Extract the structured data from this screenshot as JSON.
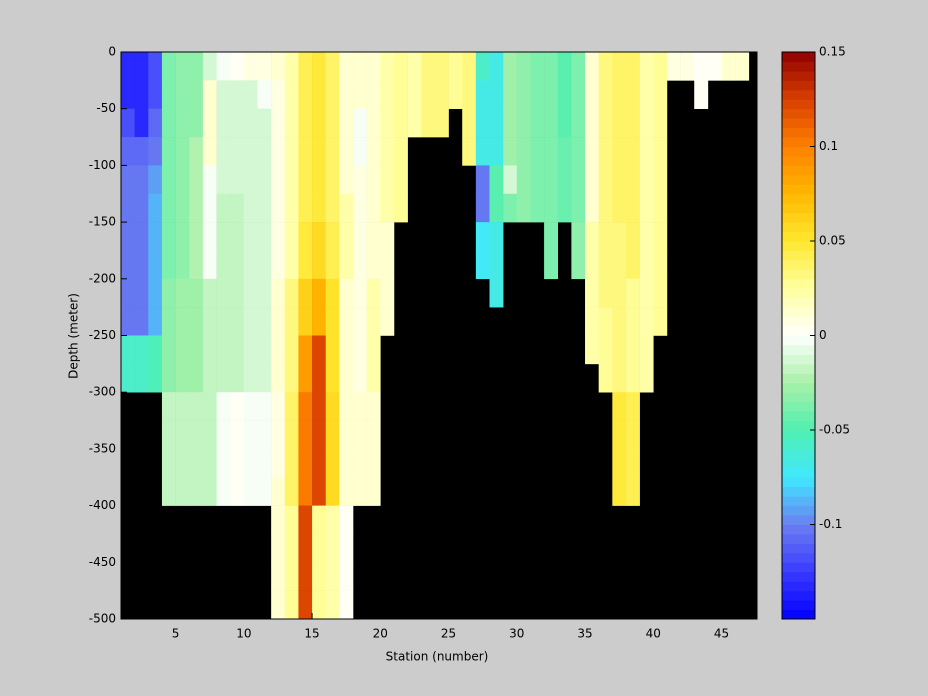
{
  "chart_data": {
    "type": "heatmap",
    "xlabel": "Station (number)",
    "ylabel": "Depth (meter)",
    "xlim": [
      1,
      47.6
    ],
    "ylim": [
      -500,
      0
    ],
    "xticks": [
      5,
      10,
      15,
      20,
      25,
      30,
      35,
      40,
      45
    ],
    "yticks": [
      0,
      -50,
      -100,
      -150,
      -200,
      -250,
      -300,
      -350,
      -400,
      -450,
      -500
    ],
    "clim": [
      -0.15,
      0.15
    ],
    "cticks": [
      -0.1,
      -0.05,
      0,
      0.05,
      0.1,
      0.15
    ],
    "colormap": [
      "#0000ff",
      "#3a3aff",
      "#6a7ff0",
      "#40e8ff",
      "#50f0b0",
      "#a8f0a8",
      "#ffffff",
      "#ffffa0",
      "#ffe830",
      "#ffb800",
      "#ff8000",
      "#d84000",
      "#900000"
    ],
    "missing_color": "#000000",
    "x_edges": [
      1,
      2,
      3,
      4,
      5,
      6,
      7,
      8,
      9,
      10,
      11,
      12,
      13,
      14,
      15,
      16,
      17,
      18,
      19,
      20,
      21,
      22,
      23,
      24,
      25,
      26,
      27,
      28,
      29,
      30,
      31,
      32,
      33,
      34,
      35,
      36,
      37,
      38,
      39,
      40,
      41,
      42,
      43,
      44,
      45,
      46,
      47
    ],
    "y_edges": [
      0,
      -25,
      -50,
      -75,
      -100,
      -125,
      -150,
      -175,
      -200,
      -225,
      -250,
      -275,
      -300,
      -325,
      -350,
      -375,
      -400,
      -425,
      -450,
      -475,
      -500
    ],
    "values": [
      [
        -0.13,
        -0.13,
        -0.12,
        -0.11,
        -0.1,
        -0.1,
        -0.1,
        -0.1,
        -0.1,
        -0.1,
        -0.06,
        -0.06,
        null,
        null,
        null,
        null,
        null,
        null,
        null,
        null
      ],
      [
        -0.13,
        -0.13,
        -0.13,
        -0.11,
        -0.1,
        -0.1,
        -0.1,
        -0.1,
        -0.1,
        -0.1,
        -0.06,
        -0.06,
        null,
        null,
        null,
        null,
        null,
        null,
        null,
        null
      ],
      [
        -0.12,
        -0.12,
        -0.11,
        -0.1,
        -0.095,
        -0.09,
        -0.09,
        -0.09,
        -0.09,
        -0.09,
        -0.055,
        -0.055,
        null,
        null,
        null,
        null,
        null,
        null,
        null,
        null
      ],
      [
        -0.04,
        -0.04,
        -0.04,
        -0.04,
        -0.04,
        -0.04,
        -0.04,
        -0.04,
        -0.035,
        -0.035,
        -0.035,
        -0.035,
        -0.02,
        -0.02,
        -0.02,
        -0.02,
        null,
        null,
        null,
        null
      ],
      [
        -0.035,
        -0.035,
        -0.035,
        -0.035,
        -0.035,
        -0.035,
        -0.035,
        -0.035,
        -0.03,
        -0.03,
        -0.03,
        -0.03,
        -0.018,
        -0.018,
        -0.018,
        -0.018,
        null,
        null,
        null,
        null
      ],
      [
        -0.035,
        -0.035,
        -0.035,
        -0.025,
        -0.025,
        -0.025,
        -0.025,
        -0.025,
        -0.03,
        -0.03,
        -0.03,
        -0.03,
        -0.018,
        -0.018,
        -0.018,
        -0.018,
        null,
        null,
        null,
        null
      ],
      [
        -0.01,
        0.01,
        0.01,
        0.01,
        -0.005,
        -0.005,
        -0.005,
        -0.005,
        -0.02,
        -0.02,
        -0.02,
        -0.02,
        -0.018,
        -0.018,
        -0.018,
        -0.018,
        null,
        null,
        null,
        null
      ],
      [
        -0.005,
        -0.012,
        -0.012,
        -0.012,
        -0.012,
        -0.02,
        -0.02,
        -0.02,
        -0.02,
        -0.02,
        -0.02,
        -0.02,
        -0.005,
        -0.005,
        -0.005,
        -0.005,
        null,
        null,
        null,
        null
      ],
      [
        0,
        -0.012,
        -0.012,
        -0.01,
        -0.01,
        -0.02,
        -0.02,
        -0.02,
        -0.02,
        -0.02,
        -0.02,
        -0.02,
        0,
        0,
        0,
        0,
        null,
        null,
        null,
        null
      ],
      [
        0.005,
        -0.01,
        -0.01,
        -0.01,
        -0.015,
        -0.015,
        -0.015,
        -0.015,
        -0.015,
        -0.015,
        -0.015,
        -0.015,
        -0.005,
        -0.005,
        -0.005,
        -0.005,
        null,
        null,
        null,
        null
      ],
      [
        0.005,
        -0.005,
        -0.01,
        -0.01,
        -0.01,
        -0.01,
        -0.01,
        -0.01,
        -0.01,
        -0.01,
        -0.01,
        -0.01,
        -0.005,
        -0.005,
        -0.005,
        -0.005,
        null,
        null,
        null,
        null
      ],
      [
        0.01,
        0.005,
        0.005,
        0.005,
        0.005,
        0.005,
        0.005,
        0.005,
        0.01,
        0.01,
        0.01,
        0.01,
        0.005,
        0.005,
        0.005,
        0.01,
        0.015,
        0.015,
        0.015,
        0.015
      ],
      [
        0.02,
        0.02,
        0.02,
        0.02,
        0.02,
        0.02,
        0.02,
        0.02,
        0.03,
        0.03,
        0.03,
        0.03,
        0.035,
        0.035,
        0.035,
        0.035,
        0.025,
        0.025,
        0.025,
        0.025
      ],
      [
        0.04,
        0.04,
        0.04,
        0.04,
        0.04,
        0.04,
        0.045,
        0.045,
        0.06,
        0.06,
        0.085,
        0.085,
        0.1,
        0.1,
        0.1,
        0.1,
        0.12,
        0.12,
        0.12,
        0.12
      ],
      [
        0.045,
        0.045,
        0.045,
        0.045,
        0.045,
        0.045,
        0.055,
        0.055,
        0.075,
        0.075,
        0.12,
        0.12,
        0.12,
        0.12,
        0.12,
        0.12,
        0.025,
        0.025,
        0.025,
        0.025
      ],
      [
        0.035,
        0.035,
        0.035,
        0.035,
        0.035,
        0.035,
        0.04,
        0.04,
        0.05,
        0.05,
        0.05,
        0.05,
        0.055,
        0.055,
        0.055,
        0.055,
        0.02,
        0.02,
        0.02,
        0.02
      ],
      [
        0.015,
        0.015,
        0.015,
        0.015,
        0.015,
        0.02,
        0.02,
        0.02,
        0.015,
        0.015,
        0.015,
        0.015,
        0.01,
        0.01,
        0.01,
        0.01,
        0.002,
        0.002,
        0.002,
        0.002
      ],
      [
        0.01,
        0.01,
        -0.005,
        -0.005,
        0.005,
        0.005,
        0.005,
        0.005,
        0.005,
        0.005,
        0.005,
        0.005,
        0.01,
        0.01,
        0.01,
        0.01,
        null,
        null,
        null,
        null
      ],
      [
        0.01,
        0.01,
        0.01,
        0.01,
        0.01,
        0.015,
        0.015,
        0.015,
        0.02,
        0.02,
        0.02,
        0.02,
        0.015,
        0.015,
        0.015,
        0.015,
        null,
        null,
        null,
        null
      ],
      [
        0.02,
        0.02,
        0.02,
        0.02,
        0.02,
        0.02,
        0.015,
        0.015,
        0.015,
        0.015,
        null,
        null,
        null,
        null,
        null,
        null,
        null,
        null,
        null,
        null
      ],
      [
        0.025,
        0.025,
        0.025,
        0.025,
        0.025,
        0.025,
        null,
        null,
        null,
        null,
        null,
        null,
        null,
        null,
        null,
        null,
        null,
        null,
        null,
        null
      ],
      [
        0.02,
        0.02,
        0.02,
        null,
        null,
        null,
        null,
        null,
        null,
        null,
        null,
        null,
        null,
        null,
        null,
        null,
        null,
        null,
        null,
        null
      ],
      [
        0.03,
        0.03,
        0.03,
        null,
        null,
        null,
        null,
        null,
        null,
        null,
        null,
        null,
        null,
        null,
        null,
        null,
        null,
        null,
        null,
        null
      ],
      [
        0.03,
        0.03,
        0.03,
        null,
        null,
        null,
        null,
        null,
        null,
        null,
        null,
        null,
        null,
        null,
        null,
        null,
        null,
        null,
        null,
        null
      ],
      [
        0.025,
        0.025,
        null,
        null,
        null,
        null,
        null,
        null,
        null,
        null,
        null,
        null,
        null,
        null,
        null,
        null,
        null,
        null,
        null,
        null
      ],
      [
        0.03,
        0.03,
        0.03,
        0.03,
        null,
        null,
        null,
        null,
        null,
        null,
        null,
        null,
        null,
        null,
        null,
        null,
        null,
        null,
        null,
        null
      ],
      [
        -0.06,
        -0.07,
        -0.07,
        -0.07,
        -0.1,
        -0.1,
        -0.075,
        -0.075,
        null,
        null,
        null,
        null,
        null,
        null,
        null,
        null,
        null,
        null,
        null,
        null
      ],
      [
        -0.07,
        -0.07,
        -0.07,
        -0.07,
        -0.05,
        -0.05,
        -0.07,
        -0.07,
        -0.07,
        null,
        null,
        null,
        null,
        null,
        null,
        null,
        null,
        null,
        null,
        null
      ],
      [
        -0.03,
        -0.03,
        -0.03,
        -0.03,
        -0.01,
        -0.04,
        null,
        null,
        null,
        null,
        null,
        null,
        null,
        null,
        null,
        null,
        null,
        null,
        null,
        null
      ],
      [
        -0.035,
        -0.035,
        -0.035,
        -0.035,
        -0.035,
        -0.035,
        null,
        null,
        null,
        null,
        null,
        null,
        null,
        null,
        null,
        null,
        null,
        null,
        null,
        null
      ],
      [
        -0.04,
        -0.04,
        -0.04,
        -0.04,
        -0.04,
        -0.04,
        null,
        null,
        null,
        null,
        null,
        null,
        null,
        null,
        null,
        null,
        null,
        null,
        null,
        null
      ],
      [
        -0.04,
        -0.04,
        -0.04,
        -0.04,
        -0.04,
        -0.04,
        -0.04,
        -0.04,
        null,
        null,
        null,
        null,
        null,
        null,
        null,
        null,
        null,
        null,
        null,
        null
      ],
      [
        -0.05,
        -0.05,
        -0.05,
        -0.045,
        -0.045,
        -0.045,
        null,
        null,
        null,
        null,
        null,
        null,
        null,
        null,
        null,
        null,
        null,
        null,
        null,
        null
      ],
      [
        -0.04,
        -0.04,
        -0.04,
        -0.04,
        -0.04,
        -0.04,
        -0.035,
        -0.035,
        null,
        null,
        null,
        null,
        null,
        null,
        null,
        null,
        null,
        null,
        null,
        null
      ],
      [
        0.015,
        0.015,
        0.015,
        0.015,
        0.015,
        0.015,
        0.02,
        0.02,
        0.02,
        0.02,
        0.02,
        null,
        null,
        null,
        null,
        null,
        null,
        null,
        null,
        null
      ],
      [
        0.03,
        0.03,
        0.03,
        0.03,
        0.03,
        0.03,
        0.03,
        0.03,
        0.03,
        0.025,
        0.025,
        0.025,
        null,
        null,
        null,
        null,
        null,
        null,
        null,
        null
      ],
      [
        0.035,
        0.035,
        0.035,
        0.035,
        0.035,
        0.035,
        0.03,
        0.03,
        0.03,
        0.03,
        0.03,
        0.03,
        0.045,
        0.045,
        0.045,
        0.045,
        null,
        null,
        null,
        null
      ],
      [
        0.035,
        0.035,
        0.035,
        0.035,
        0.035,
        0.035,
        0.035,
        0.035,
        0.025,
        0.025,
        0.025,
        0.025,
        0.04,
        0.04,
        0.04,
        0.04,
        null,
        null,
        null,
        null
      ],
      [
        0.02,
        0.02,
        0.02,
        0.02,
        0.02,
        0.02,
        0.02,
        0.02,
        0.02,
        0.02,
        0.02,
        0.02,
        null,
        null,
        null,
        null,
        null,
        null,
        null,
        null
      ],
      [
        0.025,
        0.025,
        0.025,
        0.025,
        0.025,
        0.025,
        0.025,
        0.025,
        0.025,
        0.025,
        null,
        null,
        null,
        null,
        null,
        null,
        null,
        null,
        null,
        null
      ],
      [
        0.005,
        null,
        null,
        null,
        null,
        null,
        null,
        null,
        null,
        null,
        null,
        null,
        null,
        null,
        null,
        null,
        null,
        null,
        null,
        null
      ],
      [
        0.005,
        null,
        null,
        null,
        null,
        null,
        null,
        null,
        null,
        null,
        null,
        null,
        null,
        null,
        null,
        null,
        null,
        null,
        null,
        null
      ],
      [
        0.003,
        0.003,
        null,
        null,
        null,
        null,
        null,
        null,
        null,
        null,
        null,
        null,
        null,
        null,
        null,
        null,
        null,
        null,
        null,
        null
      ],
      [
        0,
        null,
        null,
        null,
        null,
        null,
        null,
        null,
        null,
        null,
        null,
        null,
        null,
        null,
        null,
        null,
        null,
        null,
        null,
        null
      ],
      [
        0.015,
        null,
        null,
        null,
        null,
        null,
        null,
        null,
        null,
        null,
        null,
        null,
        null,
        null,
        null,
        null,
        null,
        null,
        null,
        null
      ],
      [
        0.015,
        null,
        null,
        null,
        null,
        null,
        null,
        null,
        null,
        null,
        null,
        null,
        null,
        null,
        null,
        null,
        null,
        null,
        null,
        null
      ]
    ]
  }
}
